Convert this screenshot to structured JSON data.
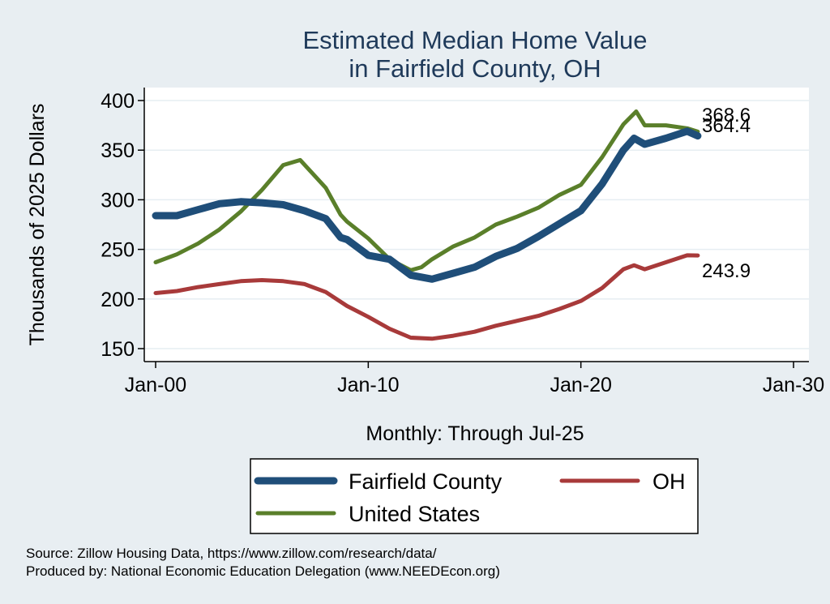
{
  "chart_data": {
    "type": "line",
    "title_line1": "Estimated Median Home Value",
    "title_line2": "in Fairfield County, OH",
    "ylabel": "Thousands of 2025 Dollars",
    "xlabel": "Monthly: Through Jul-25",
    "ylim": [
      145,
      410
    ],
    "xlim": [
      2000,
      2030
    ],
    "yticks": [
      150,
      200,
      250,
      300,
      350,
      400
    ],
    "xticks": [
      {
        "value": 2000,
        "label": "Jan-00"
      },
      {
        "value": 2010,
        "label": "Jan-10"
      },
      {
        "value": 2020,
        "label": "Jan-20"
      },
      {
        "value": 2030,
        "label": "Jan-30"
      }
    ],
    "grid": true,
    "legend_position": "bottom",
    "series": [
      {
        "name": "Fairfield County",
        "color": "#1f4e79",
        "end_label": "364.4",
        "x": [
          2000,
          2001,
          2002,
          2003,
          2004,
          2005,
          2006,
          2007,
          2008,
          2008.7,
          2009,
          2010,
          2011,
          2012,
          2013,
          2014,
          2015,
          2016,
          2017,
          2018,
          2019,
          2020,
          2021,
          2022,
          2022.5,
          2023,
          2024,
          2025,
          2025.5
        ],
        "y": [
          284,
          284,
          290,
          296,
          298,
          297,
          295,
          289,
          281,
          262,
          260,
          244,
          240,
          224,
          220,
          226,
          232,
          243,
          251,
          263,
          276,
          289,
          316,
          350,
          362,
          356,
          362,
          369,
          364.4
        ]
      },
      {
        "name": "OH",
        "color": "#a83a3a",
        "end_label": "243.9",
        "x": [
          2000,
          2001,
          2002,
          2003,
          2004,
          2005,
          2006,
          2007,
          2008,
          2009,
          2010,
          2011,
          2012,
          2013,
          2014,
          2015,
          2016,
          2017,
          2018,
          2019,
          2020,
          2021,
          2022,
          2022.5,
          2023,
          2024,
          2025,
          2025.5
        ],
        "y": [
          206,
          208,
          212,
          215,
          218,
          219,
          218,
          215,
          207,
          193,
          182,
          170,
          161,
          160,
          163,
          167,
          173,
          178,
          183,
          190,
          198,
          211,
          230,
          234,
          230,
          237,
          244,
          243.9
        ]
      },
      {
        "name": "United States",
        "color": "#5a7f2a",
        "end_label": "368.6",
        "x": [
          2000,
          2001,
          2002,
          2003,
          2004,
          2005,
          2006,
          2006.8,
          2008,
          2008.7,
          2009,
          2010,
          2011,
          2012,
          2012.5,
          2013,
          2014,
          2015,
          2016,
          2017,
          2018,
          2019,
          2020,
          2021,
          2022,
          2022.6,
          2023,
          2024,
          2025,
          2025.5
        ],
        "y": [
          237,
          245,
          256,
          270,
          288,
          310,
          335,
          340,
          312,
          285,
          278,
          261,
          240,
          229,
          232,
          240,
          253,
          262,
          275,
          283,
          292,
          305,
          315,
          343,
          376,
          389,
          375,
          375,
          372,
          368.6
        ]
      }
    ]
  },
  "source_line1": "Source: Zillow Housing Data, https://www.zillow.com/research/data/",
  "source_line2": "Produced by: National Economic Education Delegation (www.NEEDEcon.org)"
}
